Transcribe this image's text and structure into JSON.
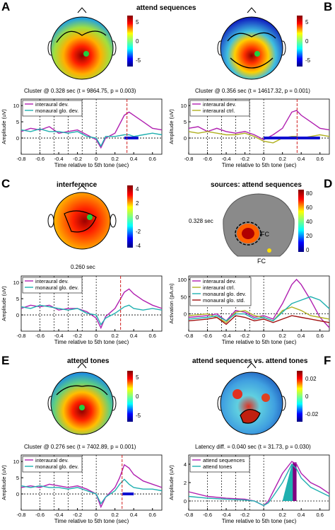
{
  "panels": {
    "A": {
      "letter": "A",
      "title": "attend sequences",
      "caption": "Cluster @ 0.328 sec (t = 9864.75, p = 0.003)",
      "cbar_ticks": [
        "5",
        "0",
        "-5"
      ],
      "legend": [
        "interaural dev.",
        "monaural glo. dev."
      ]
    },
    "B": {
      "letter": "B",
      "title": "",
      "caption": "Cluster @ 0.356 sec (t = 14617.32, p = 0.001)",
      "cbar_ticks": [
        "5",
        "0",
        "-5"
      ],
      "legend": [
        "interaural dev.",
        "interaural ctrl."
      ]
    },
    "C": {
      "letter": "C",
      "title": "interference",
      "caption": "0.260 sec",
      "cbar_ticks": [
        "4",
        "2",
        "0",
        "-2",
        "-4"
      ],
      "legend": [
        "interaural dev.",
        "monaural glo. dev."
      ]
    },
    "D": {
      "letter": "D",
      "title": "sources: attend sequences",
      "time_label": "0.328 sec",
      "fc_label": "FC",
      "fc_label2": "FC",
      "cbar_ticks": [
        "80",
        "60",
        "40",
        "20",
        "0"
      ],
      "legend": [
        "interaural dev.",
        "interaural ctrl.",
        "monaural glo. dev.",
        "monaural glo. std."
      ]
    },
    "E": {
      "letter": "E",
      "title": "attend tones",
      "caption": "Cluster @ 0.276 sec (t = 7402.89, p = 0.001)",
      "cbar_ticks": [
        "5",
        "0",
        "-5"
      ],
      "legend": [
        "interaural dev.",
        "monaural glo. dev."
      ]
    },
    "F": {
      "letter": "F",
      "title": "attend sequences vs. attend tones",
      "caption": "Latency diff. = 0.040 sec (t = 31.73, p = 0.030)",
      "cbar_ticks": [
        "0.02",
        "0",
        "-0.02"
      ],
      "legend": [
        "attend sequences",
        "attend tones"
      ]
    }
  },
  "axes": {
    "xlabel": "Time relative to 5th tone (sec)",
    "ylabel_amp": "Amplitude (uV)",
    "ylabel_act": "Activation (pA.m)",
    "xticks": [
      "-0.8",
      "-0.6",
      "-0.4",
      "-0.2",
      "0",
      "0.2",
      "0.4",
      "0.6"
    ]
  },
  "colors": {
    "magenta": "#b020b0",
    "teal": "#20b0b0",
    "olive": "#b0b020",
    "darkred": "#a01010",
    "cluster": "#1010d0",
    "marker": "#d02020"
  },
  "chart_data": [
    {
      "type": "line",
      "id": "A",
      "xlim": [
        -0.8,
        0.7
      ],
      "ylim": [
        -5,
        12
      ],
      "yticks": [
        0,
        5,
        10
      ],
      "marker_x": 0.328,
      "series": [
        {
          "name": "interaural dev.",
          "x": [
            -0.8,
            -0.7,
            -0.6,
            -0.5,
            -0.4,
            -0.3,
            -0.2,
            -0.1,
            0,
            0.05,
            0.1,
            0.2,
            0.3,
            0.35,
            0.4,
            0.5,
            0.6,
            0.7
          ],
          "y": [
            2,
            3,
            2.5,
            3.5,
            1.5,
            2,
            2.5,
            1,
            -0.5,
            -3,
            0,
            1.5,
            7,
            8,
            7,
            5,
            3,
            2.5
          ]
        },
        {
          "name": "monaural glo. dev.",
          "x": [
            -0.8,
            -0.7,
            -0.6,
            -0.5,
            -0.4,
            -0.3,
            -0.2,
            -0.1,
            0,
            0.05,
            0.1,
            0.2,
            0.3,
            0.35,
            0.4,
            0.5,
            0.6,
            0.7
          ],
          "y": [
            2.5,
            2,
            2.8,
            2,
            2,
            1.5,
            2,
            0.5,
            0,
            -2.5,
            0.5,
            0.5,
            1,
            1,
            0.5,
            1,
            1.5,
            1
          ]
        }
      ],
      "cluster": [
        0.3,
        0.45
      ]
    },
    {
      "type": "line",
      "id": "B",
      "xlim": [
        -0.8,
        0.7
      ],
      "ylim": [
        -5,
        12
      ],
      "yticks": [
        0,
        5,
        10
      ],
      "marker_x": 0.356,
      "series": [
        {
          "name": "interaural dev.",
          "x": [
            -0.8,
            -0.7,
            -0.6,
            -0.5,
            -0.4,
            -0.3,
            -0.2,
            -0.1,
            0,
            0.1,
            0.2,
            0.3,
            0.35,
            0.4,
            0.5,
            0.6,
            0.7
          ],
          "y": [
            3,
            3.5,
            2,
            3,
            2,
            1.5,
            2,
            1,
            -0.5,
            1,
            3,
            8,
            8.5,
            7,
            5,
            3,
            2.5
          ]
        },
        {
          "name": "interaural ctrl.",
          "x": [
            -0.8,
            -0.7,
            -0.6,
            -0.5,
            -0.4,
            -0.3,
            -0.2,
            -0.1,
            0,
            0.1,
            0.2,
            0.3,
            0.35,
            0.4,
            0.5,
            0.6,
            0.7
          ],
          "y": [
            2,
            1.5,
            2,
            1.5,
            1,
            1,
            1.5,
            0.5,
            -1,
            -1.5,
            0,
            0.5,
            0.5,
            0,
            0.5,
            1,
            0.5
          ]
        }
      ],
      "cluster": [
        0.0,
        0.6
      ]
    },
    {
      "type": "line",
      "id": "C",
      "xlim": [
        -0.8,
        0.7
      ],
      "ylim": [
        -5,
        12
      ],
      "yticks": [
        0,
        5,
        10
      ],
      "marker_x": 0.26,
      "series": [
        {
          "name": "interaural dev.",
          "x": [
            -0.8,
            -0.7,
            -0.6,
            -0.5,
            -0.4,
            -0.3,
            -0.2,
            -0.1,
            0,
            0.05,
            0.1,
            0.2,
            0.3,
            0.35,
            0.4,
            0.5,
            0.6,
            0.7
          ],
          "y": [
            2,
            3,
            2.5,
            3,
            1.5,
            2,
            2,
            1,
            -1,
            -4,
            -0.5,
            2,
            7,
            8,
            6.5,
            4.5,
            3,
            2
          ]
        },
        {
          "name": "monaural glo. dev.",
          "x": [
            -0.8,
            -0.7,
            -0.6,
            -0.5,
            -0.4,
            -0.3,
            -0.2,
            -0.1,
            0,
            0.05,
            0.1,
            0.2,
            0.3,
            0.35,
            0.4,
            0.5,
            0.6,
            0.7
          ],
          "y": [
            2.5,
            2,
            3,
            2.5,
            2,
            1.5,
            2,
            0.5,
            0,
            -3,
            -1,
            0.5,
            2.5,
            3,
            2,
            1.5,
            2,
            1.5
          ]
        }
      ]
    },
    {
      "type": "line",
      "id": "D",
      "xlim": [
        -0.8,
        0.7
      ],
      "ylim": [
        -50,
        110
      ],
      "yticks": [
        0,
        50,
        100
      ],
      "marker_x": 0,
      "series": [
        {
          "name": "interaural dev.",
          "x": [
            -0.8,
            -0.6,
            -0.5,
            -0.4,
            -0.3,
            -0.2,
            -0.1,
            0,
            0.1,
            0.2,
            0.3,
            0.35,
            0.4,
            0.5,
            0.6,
            0.7
          ],
          "y": [
            -10,
            -5,
            0,
            -20,
            10,
            5,
            -10,
            -5,
            -15,
            30,
            85,
            100,
            85,
            40,
            -10,
            -40
          ]
        },
        {
          "name": "interaural ctrl.",
          "x": [
            -0.8,
            -0.6,
            -0.5,
            -0.4,
            -0.3,
            -0.2,
            -0.1,
            0,
            0.1,
            0.2,
            0.3,
            0.4,
            0.5,
            0.6,
            0.7
          ],
          "y": [
            -5,
            0,
            -10,
            -25,
            5,
            10,
            -5,
            -10,
            -20,
            10,
            20,
            10,
            -5,
            -10,
            -15
          ]
        },
        {
          "name": "monaural glo. dev.",
          "x": [
            -0.8,
            -0.6,
            -0.5,
            -0.4,
            -0.3,
            -0.2,
            -0.1,
            0,
            0.1,
            0.2,
            0.3,
            0.4,
            0.5,
            0.6,
            0.7
          ],
          "y": [
            -15,
            -10,
            -5,
            -20,
            0,
            0,
            -15,
            -10,
            -20,
            5,
            30,
            40,
            50,
            40,
            15
          ]
        },
        {
          "name": "monaural glo. std.",
          "x": [
            -0.8,
            -0.6,
            -0.5,
            -0.4,
            -0.3,
            -0.2,
            -0.1,
            0,
            0.1,
            0.2,
            0.3,
            0.4,
            0.5,
            0.6,
            0.7
          ],
          "y": [
            -20,
            -15,
            -10,
            -30,
            -5,
            -10,
            -20,
            -15,
            -25,
            -15,
            -5,
            -10,
            -15,
            -20,
            -25
          ]
        }
      ]
    },
    {
      "type": "line",
      "id": "E",
      "xlim": [
        -0.8,
        0.7
      ],
      "ylim": [
        -5,
        12
      ],
      "yticks": [
        0,
        5,
        10
      ],
      "marker_x": 0.276,
      "series": [
        {
          "name": "interaural dev.",
          "x": [
            -0.8,
            -0.7,
            -0.6,
            -0.5,
            -0.4,
            -0.3,
            -0.2,
            -0.1,
            0,
            0.05,
            0.1,
            0.2,
            0.25,
            0.3,
            0.35,
            0.4,
            0.5,
            0.6,
            0.7
          ],
          "y": [
            2,
            2.5,
            2,
            3,
            2.5,
            2,
            2.5,
            1.5,
            0,
            -4,
            -1,
            2,
            5,
            9,
            8,
            6,
            4,
            3,
            2
          ]
        },
        {
          "name": "monaural glo. dev.",
          "x": [
            -0.8,
            -0.7,
            -0.6,
            -0.5,
            -0.4,
            -0.3,
            -0.2,
            -0.1,
            0,
            0.05,
            0.1,
            0.2,
            0.25,
            0.3,
            0.35,
            0.4,
            0.5,
            0.6,
            0.7
          ],
          "y": [
            2.5,
            2,
            2.5,
            2,
            2,
            1.5,
            2,
            1,
            0,
            -3,
            -1,
            1,
            3,
            4.5,
            3,
            2,
            1.5,
            1.5,
            1
          ]
        }
      ],
      "cluster": [
        0.28,
        0.4
      ]
    },
    {
      "type": "line",
      "id": "F",
      "xlim": [
        -0.8,
        0.7
      ],
      "ylim": [
        -1,
        5
      ],
      "yticks": [
        0,
        2,
        4
      ],
      "marker_x": 0,
      "series": [
        {
          "name": "attend sequences",
          "x": [
            -0.8,
            -0.6,
            -0.4,
            -0.2,
            -0.1,
            0,
            0.05,
            0.1,
            0.2,
            0.3,
            0.35,
            0.4,
            0.5,
            0.6,
            0.7
          ],
          "y": [
            1,
            0.5,
            0.3,
            0.2,
            0,
            -0.5,
            0,
            1,
            3,
            4.3,
            4,
            3,
            2,
            1.5,
            0.8
          ]
        },
        {
          "name": "attend tones",
          "x": [
            -0.8,
            -0.6,
            -0.4,
            -0.2,
            -0.1,
            0,
            0.05,
            0.1,
            0.2,
            0.3,
            0.35,
            0.4,
            0.5,
            0.6,
            0.7
          ],
          "y": [
            0.5,
            0.3,
            0.2,
            0.1,
            0,
            -0.5,
            -0.2,
            0.5,
            2,
            4,
            3.5,
            2.5,
            1.5,
            1,
            0.5
          ]
        }
      ]
    }
  ]
}
